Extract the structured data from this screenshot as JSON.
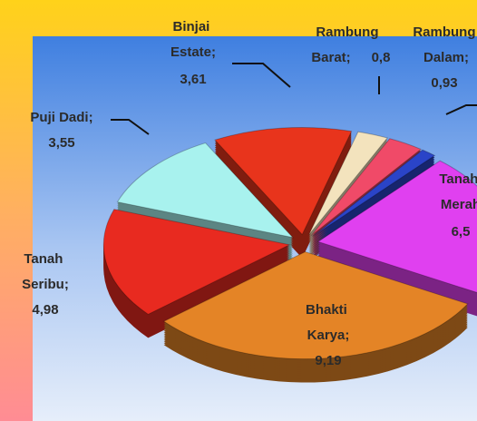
{
  "chart_data": {
    "type": "pie3d",
    "categories": [
      "Binjai Estate;",
      "Rambung Barat;",
      "Rambung Dalam;",
      null,
      "Tanah Merah",
      "Bhakti Karya;",
      "Tanah Seribu;",
      "Puji Dadi;"
    ],
    "values": [
      3.61,
      0.8,
      0.93,
      0.4,
      6.5,
      9.19,
      4.98,
      3.55
    ],
    "value_labels": [
      "3,61",
      "0,8",
      "0,93",
      null,
      "6,5",
      "9,19",
      "4,98",
      "3,55"
    ],
    "colors": [
      "#e8341c",
      "#f3e3bd",
      "#f04a68",
      "#2a44c8",
      "#e040f0",
      "#e48426",
      "#e82a20",
      "#a8f2ee"
    ]
  }
}
